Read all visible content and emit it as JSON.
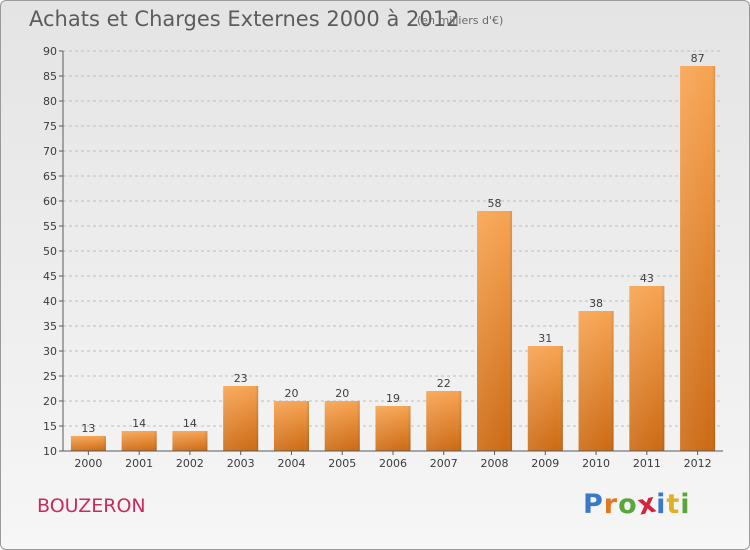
{
  "title": "Achats et Charges Externes 2000 à 2012",
  "subtitle": "(en milliers d'€)",
  "commune": "BOUZERON",
  "brand": {
    "name": "Proxiti",
    "letters": [
      {
        "char": "P",
        "color": "#3a78c8"
      },
      {
        "char": "r",
        "color": "#e07820"
      },
      {
        "char": "o",
        "color": "#5aa63c"
      },
      {
        "char": "x",
        "color": "#d4243c"
      },
      {
        "char": "i",
        "color": "#3a78c8"
      },
      {
        "char": "t",
        "color": "#e0b020"
      },
      {
        "char": "i",
        "color": "#5aa63c"
      }
    ]
  },
  "colors": {
    "bar_top": "#f7a452",
    "bar_bottom": "#cc6a14",
    "grid": "#bdbdbd",
    "axis": "#5a5a5a",
    "title": "#5c5c5c",
    "commune": "#cc2a5c"
  },
  "chart_data": {
    "type": "bar",
    "categories": [
      "2000",
      "2001",
      "2002",
      "2003",
      "2004",
      "2005",
      "2006",
      "2007",
      "2008",
      "2009",
      "2010",
      "2011",
      "2012"
    ],
    "values": [
      13,
      14,
      14,
      23,
      20,
      20,
      19,
      22,
      58,
      31,
      38,
      43,
      87
    ],
    "ylim": [
      10,
      90
    ],
    "yticks": [
      10,
      15,
      20,
      25,
      30,
      35,
      40,
      45,
      50,
      55,
      60,
      65,
      70,
      75,
      80,
      85,
      90
    ],
    "grid": "dashed horizontal",
    "xlabel": "",
    "ylabel": ""
  }
}
